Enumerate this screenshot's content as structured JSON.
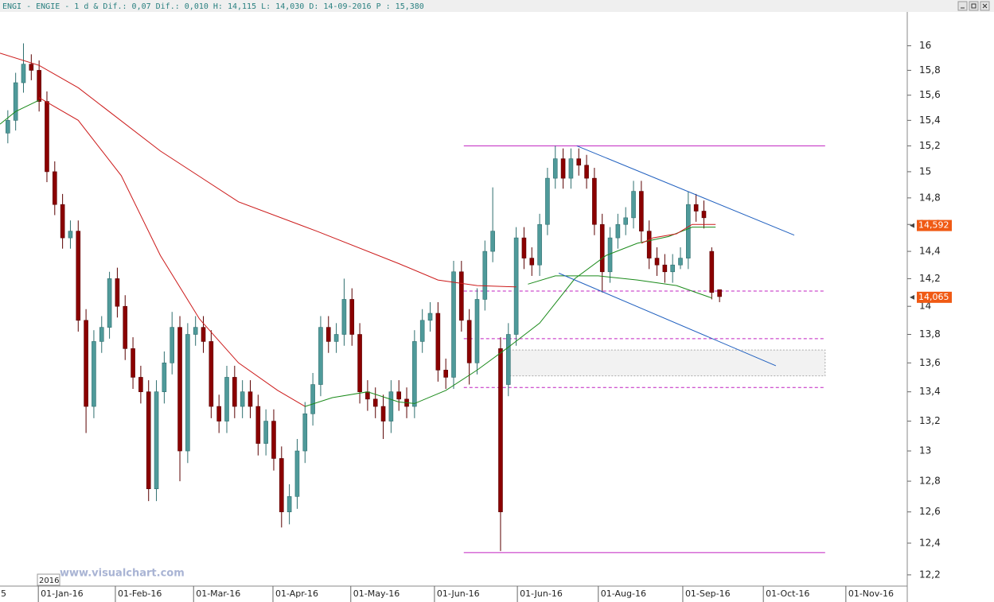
{
  "chart_data": {
    "type": "candlestick",
    "header": "ENGI - ENGIE -  1 d & Dif.: 0,07 Dif.: 0,010 H: 14,115 L: 14,030 D: 14-09-2016 P : 15,380",
    "watermark": "www.visualchart.com",
    "year_label": "2016",
    "x_cut_label": "5",
    "log_scale": true,
    "xlim": [
      0,
      232
    ],
    "ylim": [
      12.13,
      16.28
    ],
    "up_color": "#4f9a9a",
    "down_color": "#8b0000",
    "yticks": [
      {
        "value": 12.2,
        "label": "12,2"
      },
      {
        "value": 12.4,
        "label": "12,4"
      },
      {
        "value": 12.6,
        "label": "12,6"
      },
      {
        "value": 12.8,
        "label": "12,8"
      },
      13,
      {
        "value": 13.2,
        "label": "13,2"
      },
      {
        "value": 13.4,
        "label": "13,4"
      },
      {
        "value": 13.6,
        "label": "13,6"
      },
      {
        "value": 13.8,
        "label": "13,8"
      },
      14,
      {
        "value": 14.2,
        "label": "14,2"
      },
      {
        "value": 14.4,
        "label": "14,4"
      },
      {
        "value": 14.6,
        "label": "14,6"
      },
      {
        "value": 14.8,
        "label": "14,8"
      },
      15,
      {
        "value": 15.2,
        "label": "15,2"
      },
      {
        "value": 15.4,
        "label": "15,4"
      },
      {
        "value": 15.6,
        "label": "15,6"
      },
      {
        "value": 15.8,
        "label": "15,8"
      },
      16
    ],
    "xticks": [
      {
        "value": 9.8,
        "label": "01-Jan-16"
      },
      {
        "value": 29.5,
        "label": "01-Feb-16"
      },
      {
        "value": 49.5,
        "label": "01-Mar-16"
      },
      {
        "value": 69.8,
        "label": "01-Apr-16"
      },
      {
        "value": 89.7,
        "label": "01-May-16"
      },
      {
        "value": 111.1,
        "label": "01-Jun-16"
      },
      {
        "value": 132.3,
        "label": "01-Jun-16"
      },
      {
        "value": 153.0,
        "label": "01-Aug-16"
      },
      {
        "value": 174.6,
        "label": "01-Sep-16"
      },
      {
        "value": 195.2,
        "label": "01-Oct-16"
      },
      {
        "value": 216.3,
        "label": "01-Nov-16"
      }
    ],
    "x": [
      2,
      4,
      6,
      8,
      10,
      12,
      14,
      16,
      18,
      20,
      22,
      24,
      26,
      28,
      30,
      32,
      34,
      36,
      38,
      40,
      42,
      44,
      46,
      48,
      50,
      52,
      54,
      56,
      58,
      60,
      62,
      64,
      66,
      68,
      70,
      72,
      74,
      76,
      78,
      80,
      82,
      84,
      86,
      88,
      90,
      92,
      94,
      96,
      98,
      100,
      102,
      104,
      106,
      108,
      110,
      112,
      114,
      116,
      118,
      120,
      122,
      124,
      126,
      128,
      130,
      132,
      134,
      136,
      138,
      140,
      142,
      144,
      146,
      148,
      150,
      152,
      154,
      156,
      158,
      160,
      162,
      164,
      166,
      168,
      170,
      172,
      174,
      176,
      178,
      180,
      182,
      184
    ],
    "open": [
      15.3,
      15.4,
      15.7,
      15.85,
      15.8,
      15.55,
      15.0,
      14.75,
      14.5,
      14.55,
      13.9,
      13.3,
      13.75,
      13.85,
      14.2,
      14.0,
      13.7,
      13.5,
      13.4,
      12.75,
      13.4,
      13.6,
      13.85,
      13.0,
      13.8,
      13.85,
      13.75,
      13.3,
      13.2,
      13.5,
      13.3,
      13.4,
      13.3,
      13.05,
      13.2,
      12.95,
      12.6,
      12.7,
      13.0,
      13.25,
      13.45,
      13.85,
      13.75,
      13.8,
      14.05,
      13.8,
      13.4,
      13.35,
      13.3,
      13.2,
      13.4,
      13.35,
      13.3,
      13.75,
      13.9,
      13.95,
      13.55,
      13.5,
      14.25,
      13.9,
      13.6,
      14.05,
      14.4,
      13.7,
      13.45,
      13.8,
      14.5,
      14.35,
      14.3,
      14.6,
      14.95,
      15.1,
      14.95,
      15.1,
      15.05,
      14.95,
      14.6,
      14.25,
      14.5,
      14.6,
      14.65,
      14.85,
      14.55,
      14.35,
      14.3,
      14.25,
      14.3,
      14.35,
      14.75,
      14.7,
      14.4,
      14.12
    ],
    "high": [
      15.48,
      15.78,
      16.02,
      15.93,
      15.88,
      15.63,
      15.08,
      14.83,
      14.63,
      14.63,
      13.98,
      13.83,
      13.93,
      14.25,
      14.28,
      14.08,
      13.78,
      13.58,
      13.48,
      13.48,
      13.68,
      13.96,
      13.93,
      13.88,
      13.93,
      13.93,
      13.83,
      13.38,
      13.58,
      13.58,
      13.48,
      13.48,
      13.38,
      13.28,
      13.28,
      13.03,
      12.78,
      13.08,
      13.33,
      13.53,
      13.93,
      13.93,
      13.88,
      14.2,
      14.13,
      13.88,
      13.48,
      13.43,
      13.38,
      13.48,
      13.48,
      13.43,
      13.83,
      13.98,
      14.03,
      14.03,
      13.63,
      14.33,
      14.33,
      13.98,
      14.13,
      14.48,
      14.88,
      13.78,
      13.88,
      14.58,
      14.58,
      14.43,
      14.68,
      15.03,
      15.2,
      15.18,
      15.18,
      15.18,
      15.13,
      15.03,
      14.68,
      14.58,
      14.68,
      14.73,
      14.93,
      14.93,
      14.63,
      14.43,
      14.38,
      14.38,
      14.43,
      14.85,
      14.83,
      14.78,
      14.43,
      14.12
    ],
    "low": [
      15.22,
      15.32,
      15.62,
      15.72,
      15.47,
      14.92,
      14.67,
      14.42,
      14.42,
      13.82,
      13.12,
      13.22,
      13.67,
      13.77,
      13.92,
      13.62,
      13.42,
      13.32,
      12.67,
      12.67,
      13.32,
      13.52,
      12.8,
      12.92,
      13.72,
      13.67,
      13.22,
      13.12,
      13.12,
      13.22,
      13.22,
      13.22,
      12.97,
      12.97,
      12.87,
      12.5,
      12.52,
      12.62,
      12.92,
      13.17,
      13.37,
      13.67,
      13.67,
      13.72,
      13.72,
      13.32,
      13.27,
      13.22,
      13.08,
      13.12,
      13.27,
      13.22,
      13.22,
      13.67,
      13.82,
      13.47,
      13.42,
      13.42,
      13.82,
      13.45,
      13.52,
      13.97,
      14.32,
      12.35,
      13.37,
      13.72,
      14.27,
      14.22,
      14.22,
      14.52,
      14.87,
      14.87,
      14.87,
      14.97,
      14.87,
      14.52,
      14.1,
      14.17,
      14.42,
      14.52,
      14.57,
      14.47,
      14.27,
      14.22,
      14.17,
      14.17,
      14.27,
      14.27,
      14.62,
      14.57,
      14.05,
      14.03
    ],
    "close": [
      15.4,
      15.7,
      15.85,
      15.8,
      15.55,
      15.0,
      14.75,
      14.5,
      14.55,
      13.9,
      13.3,
      13.75,
      13.85,
      14.2,
      14.0,
      13.7,
      13.5,
      13.4,
      12.75,
      13.4,
      13.6,
      13.85,
      13.0,
      13.8,
      13.85,
      13.75,
      13.3,
      13.2,
      13.5,
      13.3,
      13.4,
      13.3,
      13.05,
      13.2,
      12.95,
      12.6,
      12.7,
      13.0,
      13.25,
      13.45,
      13.85,
      13.75,
      13.8,
      14.05,
      13.8,
      13.4,
      13.35,
      13.3,
      13.2,
      13.4,
      13.35,
      13.3,
      13.75,
      13.9,
      13.95,
      13.55,
      13.5,
      14.25,
      13.9,
      13.6,
      14.05,
      14.4,
      14.55,
      12.6,
      13.8,
      14.5,
      14.35,
      14.3,
      14.6,
      14.95,
      15.1,
      14.95,
      15.1,
      15.05,
      14.95,
      14.6,
      14.25,
      14.5,
      14.6,
      14.65,
      14.85,
      14.55,
      14.35,
      14.3,
      14.25,
      14.3,
      14.35,
      14.75,
      14.7,
      14.65,
      14.1,
      14.07
    ],
    "lines": [
      {
        "color": "#cc1a1a",
        "x": [
          0,
          10,
          20,
          41,
          61,
          81,
          102,
          112,
          122,
          132
        ],
        "values": [
          15.94,
          15.84,
          15.66,
          15.16,
          14.77,
          14.55,
          14.31,
          14.19,
          14.15,
          14.14
        ]
      },
      {
        "color": "#1a8a1a",
        "x": [
          135,
          142,
          153,
          163,
          173,
          182
        ],
        "values": [
          14.16,
          14.22,
          14.22,
          14.19,
          14.15,
          14.06
        ]
      },
      {
        "color": "#cc1a1a",
        "x": [
          10,
          20,
          31,
          41,
          51,
          61,
          71,
          78
        ],
        "values": [
          15.58,
          15.4,
          14.97,
          14.37,
          13.91,
          13.6,
          13.41,
          13.3
        ]
      },
      {
        "color": "#1a8a1a",
        "x": [
          0,
          4,
          10
        ],
        "values": [
          15.37,
          15.47,
          15.56
        ]
      },
      {
        "color": "#1a8a1a",
        "x": [
          78,
          85,
          94,
          102,
          106,
          114,
          122,
          130,
          138,
          147,
          155,
          163,
          171,
          177,
          183
        ],
        "values": [
          13.3,
          13.36,
          13.4,
          13.33,
          13.32,
          13.41,
          13.55,
          13.71,
          13.88,
          14.2,
          14.37,
          14.46,
          14.51,
          14.58,
          14.58
        ]
      },
      {
        "color": "#cc1a1a",
        "x": [
          164,
          167,
          173,
          177,
          183
        ],
        "values": [
          14.46,
          14.5,
          14.53,
          14.6,
          14.6
        ]
      }
    ],
    "hlines": [
      {
        "value": 15.2,
        "x": [
          118.6,
          211
        ],
        "dashed": false
      },
      {
        "value": 12.34,
        "x": [
          118.6,
          211
        ],
        "dashed": false
      },
      {
        "value": 14.11,
        "x": [
          118.6,
          211
        ],
        "dashed": true
      },
      {
        "value": 13.77,
        "x": [
          118.6,
          211
        ],
        "dashed": true
      },
      {
        "value": 13.43,
        "x": [
          118.6,
          211
        ],
        "dashed": true
      }
    ],
    "hline_color": "#c020c0",
    "zone": {
      "x": [
        130.2,
        211
      ],
      "values": [
        13.51,
        13.69
      ]
    },
    "trendlines": [
      {
        "x": [
          147.5,
          203.1
        ],
        "values": [
          15.2,
          14.52
        ]
      },
      {
        "x": [
          142.9,
          198.4
        ],
        "values": [
          14.24,
          13.58
        ]
      }
    ],
    "trend_color": "#1f5fbf",
    "price_labels": [
      {
        "value": 14.592,
        "label": "14,592"
      },
      {
        "value": 14.065,
        "label": "14,065"
      }
    ],
    "price_label_color": "#f05a14"
  }
}
